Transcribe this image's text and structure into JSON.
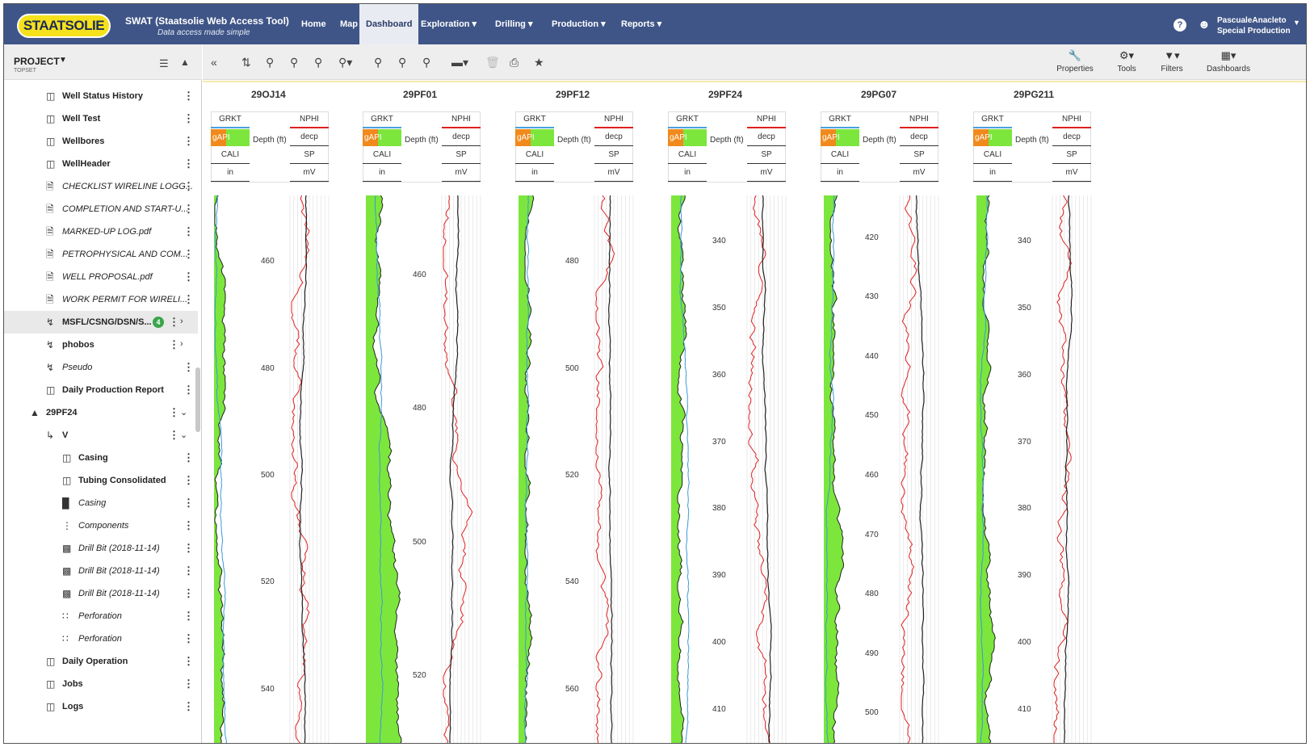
{
  "header": {
    "logo_text": "STAATSOLIE",
    "app_title": "SWAT (Staatsolie Web Access Tool)",
    "app_subtitle": "Data access made simple",
    "nav": [
      {
        "label": "Home",
        "active": false
      },
      {
        "label": "Map",
        "active": false
      },
      {
        "label": "Dashboard",
        "active": true
      },
      {
        "label": "Exploration ▾",
        "active": false
      },
      {
        "label": "Drilling ▾",
        "active": false
      },
      {
        "label": "Production ▾",
        "active": false
      },
      {
        "label": "Reports ▾",
        "active": false
      }
    ],
    "help_icon": "?",
    "user_name": "PascualeAnacleto",
    "user_role": "Special Production",
    "colors": {
      "bar": "#3f5587",
      "logo": "#f5e11c"
    }
  },
  "sidebar": {
    "project_label": "PROJECT",
    "project_sub": "TOPSET",
    "tree": [
      {
        "label": "Well Status History",
        "icon": "table-icon",
        "style": "b"
      },
      {
        "label": "Well Test",
        "icon": "table-icon",
        "style": "b"
      },
      {
        "label": "Wellbores",
        "icon": "table-icon",
        "style": "b"
      },
      {
        "label": "WellHeader",
        "icon": "table-icon",
        "style": "b"
      },
      {
        "label": "CHECKLIST WIRELINE LOGG...",
        "icon": "document-icon",
        "style": "i"
      },
      {
        "label": "COMPLETION AND START-U...",
        "icon": "document-icon",
        "style": "i"
      },
      {
        "label": "MARKED-UP LOG.pdf",
        "icon": "document-icon",
        "style": "i"
      },
      {
        "label": "PETROPHYSICAL AND COM...",
        "icon": "document-icon",
        "style": "i"
      },
      {
        "label": "WELL PROPOSAL.pdf",
        "icon": "document-icon",
        "style": "i"
      },
      {
        "label": "WORK PERMIT FOR WIRELI...",
        "icon": "document-icon",
        "style": "i"
      },
      {
        "label": "MSFL/CSNG/DSN/S...",
        "icon": "log-curve-icon",
        "style": "b",
        "badge": "4",
        "selected": true,
        "arrow": "›"
      },
      {
        "label": "phobos",
        "icon": "log-curve-icon",
        "style": "b",
        "arrow": "›"
      },
      {
        "label": "Pseudo",
        "icon": "log-curve-icon",
        "style": "i"
      },
      {
        "label": "Daily Production Report",
        "icon": "table-icon",
        "style": "b"
      },
      {
        "label": "29PF24",
        "icon": "rig-icon",
        "style": "b",
        "arrow": "⌄"
      },
      {
        "label": "V",
        "icon": "wellbore-icon",
        "style": "b",
        "arrow": "⌄"
      },
      {
        "label": "Casing",
        "icon": "table-icon",
        "style": "b"
      },
      {
        "label": "Tubing Consolidated",
        "icon": "table-icon",
        "style": "b"
      },
      {
        "label": "Casing",
        "icon": "casing-icon",
        "style": "i"
      },
      {
        "label": "Components",
        "icon": "component-icon",
        "style": "i"
      },
      {
        "label": "Drill Bit (2018-11-14)",
        "icon": "drill-bit-icon",
        "style": "i"
      },
      {
        "label": "Drill Bit (2018-11-14)",
        "icon": "drill-bit-icon",
        "style": "i"
      },
      {
        "label": "Drill Bit (2018-11-14)",
        "icon": "drill-bit-icon",
        "style": "i"
      },
      {
        "label": "Perforation",
        "icon": "perforation-icon",
        "style": "i"
      },
      {
        "label": "Perforation",
        "icon": "perforation-icon",
        "style": "i"
      },
      {
        "label": "Daily Operation",
        "icon": "table-icon",
        "style": "b"
      },
      {
        "label": "Jobs",
        "icon": "table-icon",
        "style": "b"
      },
      {
        "label": "Logs",
        "icon": "table-icon",
        "style": "b"
      }
    ]
  },
  "toolbar": {
    "properties_label": "Properties",
    "tools_label": "Tools",
    "filters_label": "Filters",
    "dashboards_label": "Dashboards"
  },
  "log_header": {
    "left_top": "GRKT",
    "left_unit": "gAPI",
    "left_bottom": "CALI",
    "left_bottom_unit": "in",
    "depth_label": "Depth (ft)",
    "right_top": "NPHI",
    "right_unit": "decp",
    "right_bottom": "SP",
    "right_bottom_unit": "mV"
  },
  "wells": [
    {
      "name": "29OJ14",
      "ticks": [
        "460",
        "480",
        "500",
        "520",
        "540"
      ]
    },
    {
      "name": "29PF01",
      "ticks": [
        "460",
        "480",
        "500",
        "520"
      ]
    },
    {
      "name": "29PF12",
      "ticks": [
        "480",
        "500",
        "520",
        "540",
        "560"
      ]
    },
    {
      "name": "29PF24",
      "ticks": [
        "340",
        "350",
        "360",
        "370",
        "380",
        "390",
        "400",
        "410"
      ]
    },
    {
      "name": "29PG07",
      "ticks": [
        "420",
        "430",
        "440",
        "450",
        "460",
        "470",
        "480",
        "490",
        "500"
      ]
    },
    {
      "name": "29PG211",
      "ticks": [
        "340",
        "350",
        "360",
        "370",
        "380",
        "390",
        "400",
        "410"
      ]
    }
  ],
  "colors": {
    "gr_fill": "#7ce63c",
    "gr_cutoff": "#f08a1c",
    "cali": "#3a9ad9",
    "sp": "#e02020",
    "nphi": "#222222"
  }
}
